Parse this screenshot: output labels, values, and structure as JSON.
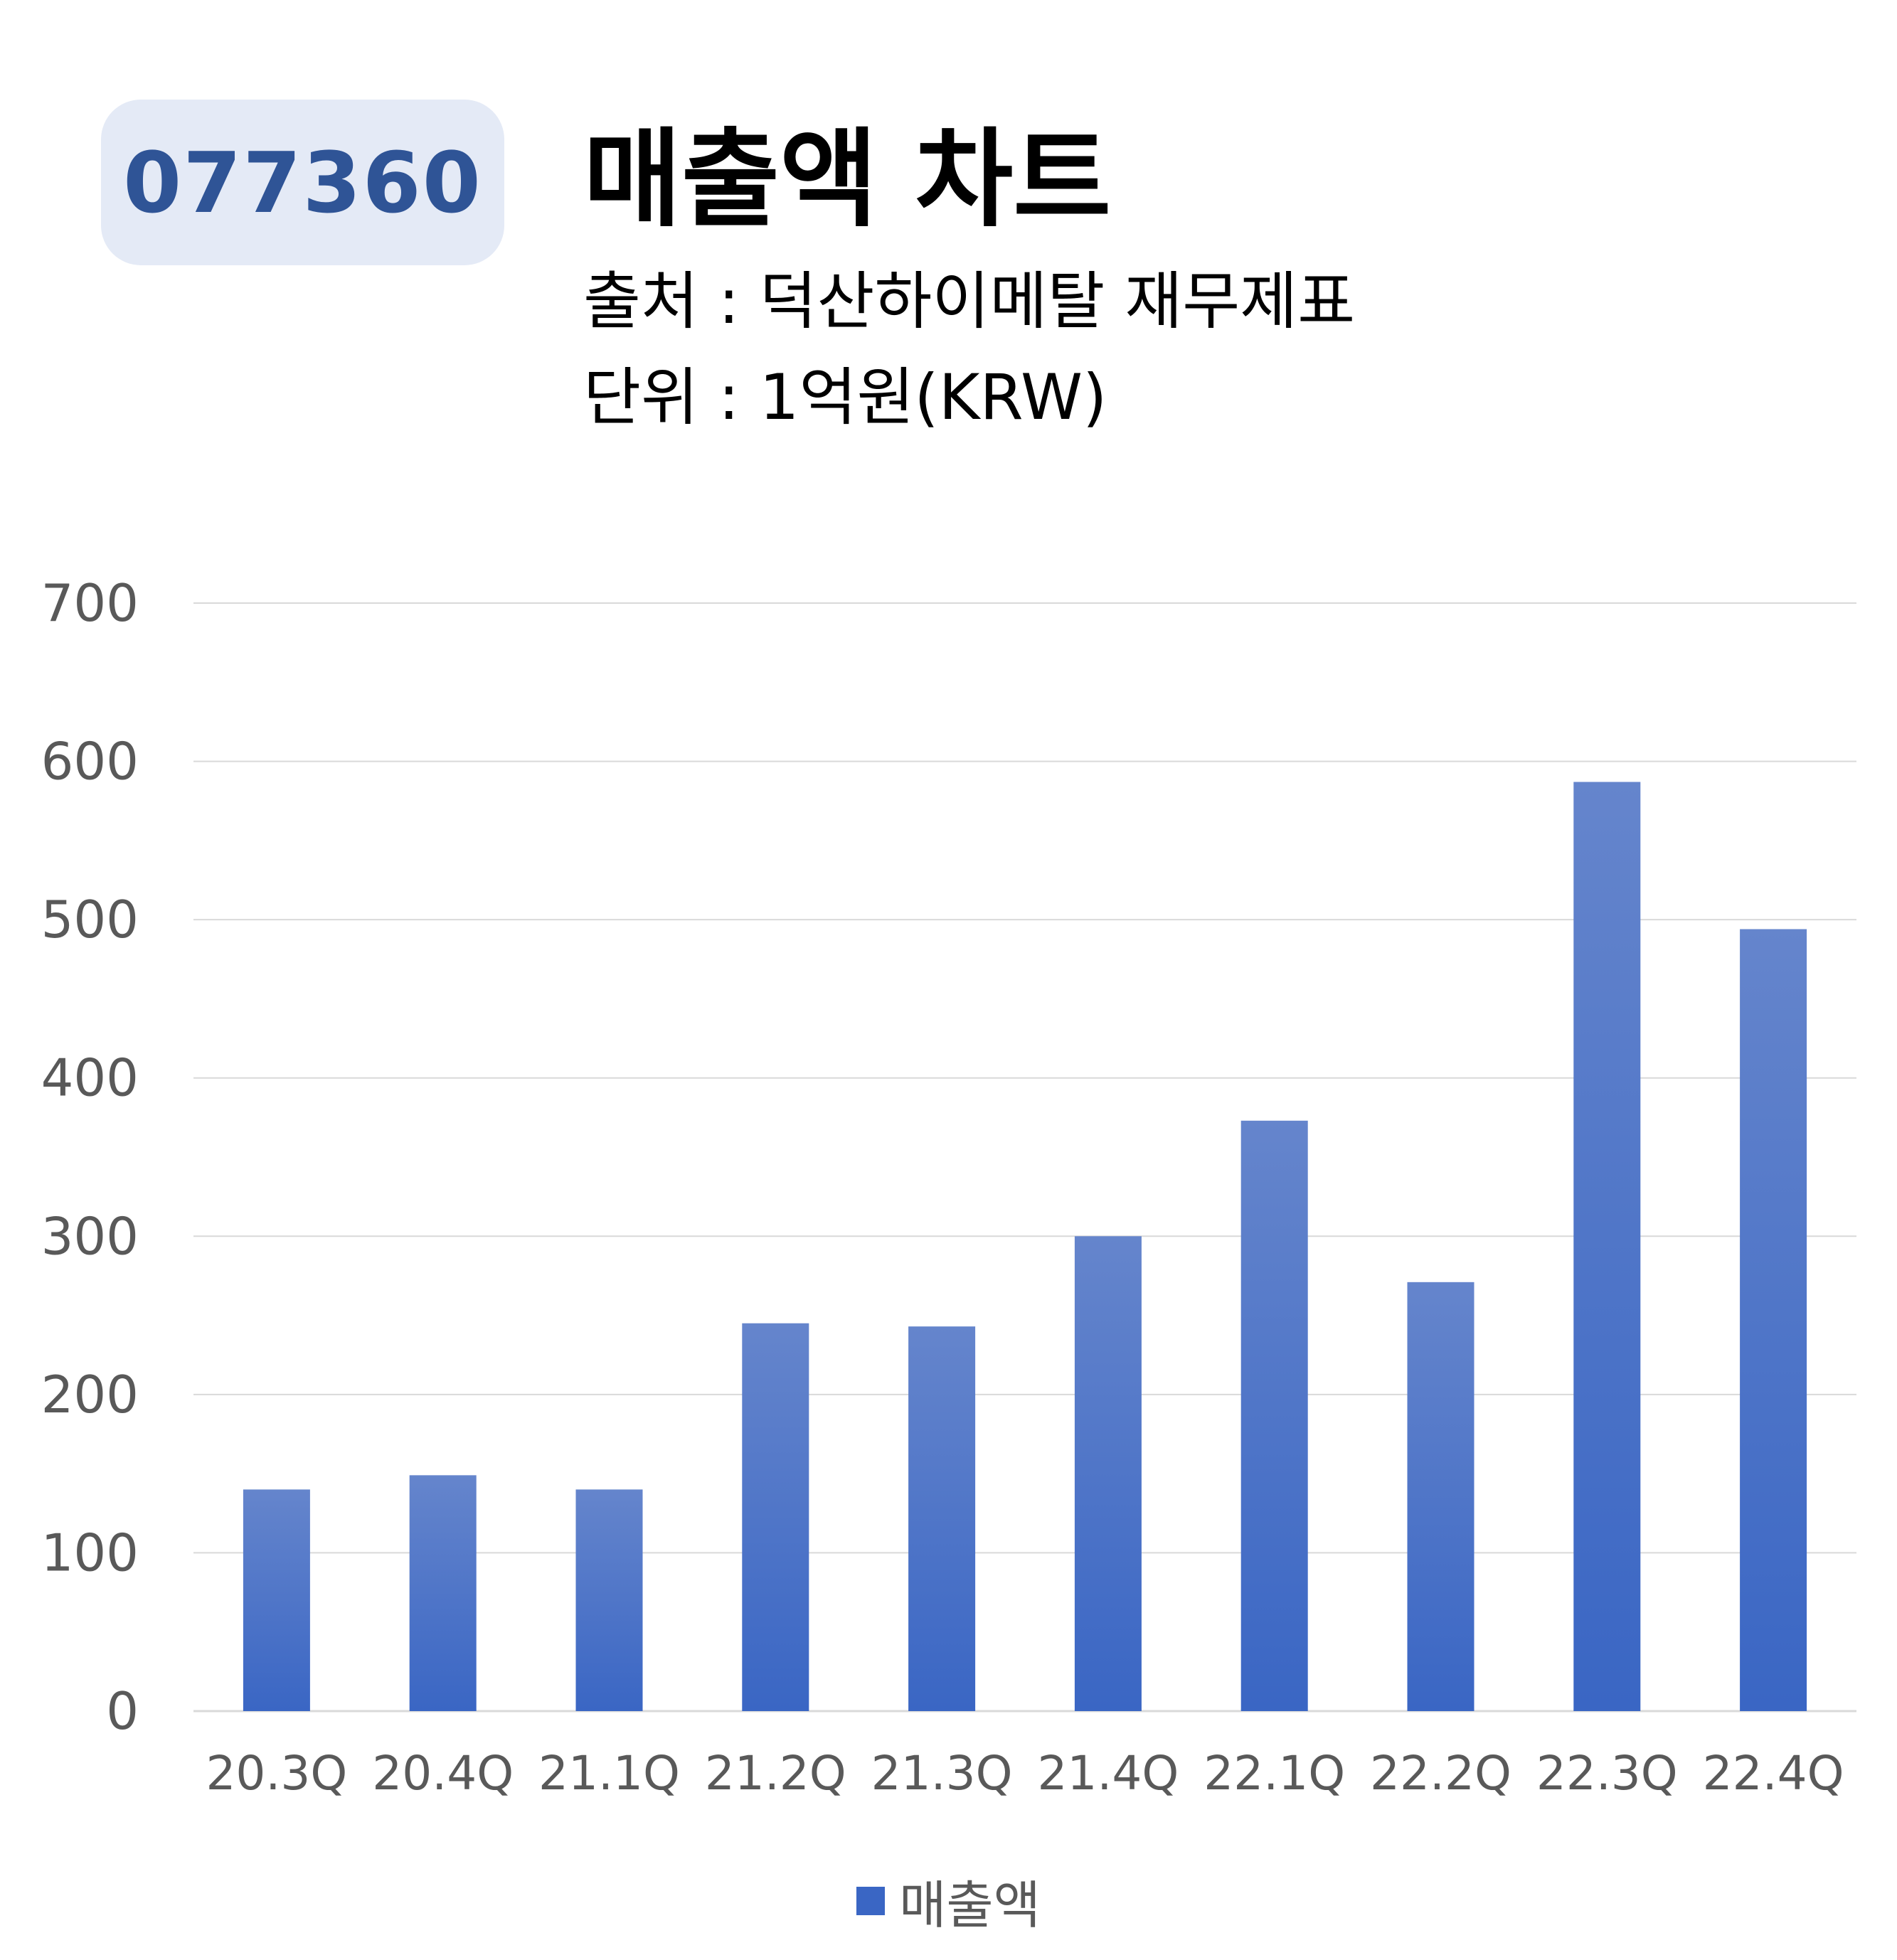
{
  "badge": {
    "ticker": "077360"
  },
  "header": {
    "title": "매출액 차트",
    "source": "출처 : 덕산하이메탈 재무제표",
    "unit": "단위 : 1억원(KRW)"
  },
  "colors": {
    "bar": "#3a66c4",
    "bar_top": "#6585cc",
    "badge_bg": "#e4eaf6",
    "badge_text": "#2f5496",
    "grid": "#d9d9d9",
    "axis_text": "#595959"
  },
  "chart_data": {
    "type": "bar",
    "categories": [
      "20.3Q",
      "20.4Q",
      "21.1Q",
      "21.2Q",
      "21.3Q",
      "21.4Q",
      "22.1Q",
      "22.2Q",
      "22.3Q",
      "22.4Q"
    ],
    "series": [
      {
        "name": "매출액",
        "values": [
          140,
          149,
          140,
          245,
          243,
          300,
          373,
          271,
          587,
          494
        ]
      }
    ],
    "ylim": [
      0,
      700
    ],
    "yticks": [
      0,
      100,
      200,
      300,
      400,
      500,
      600,
      700
    ],
    "grid": true,
    "legend": "bottom"
  }
}
